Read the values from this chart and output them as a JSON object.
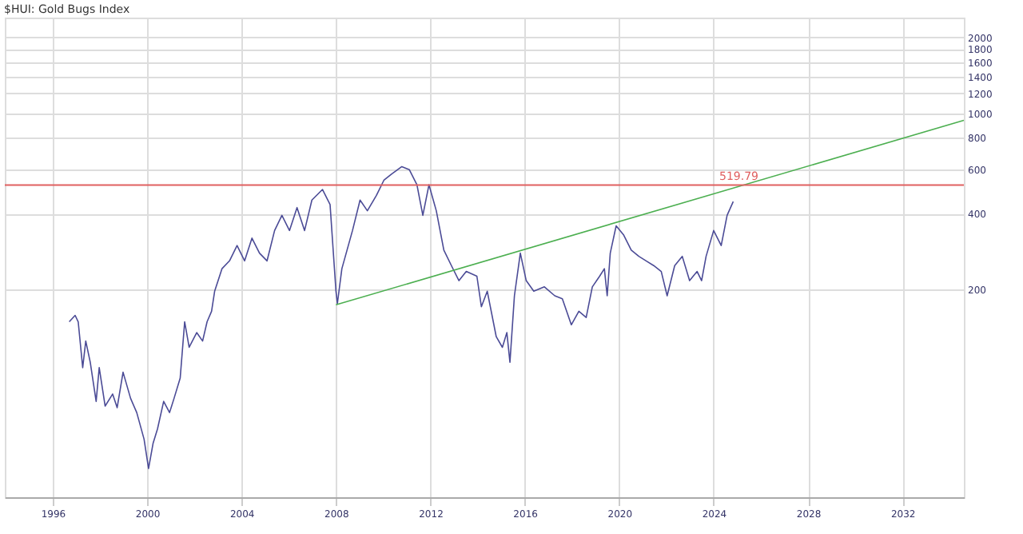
{
  "chart_data": {
    "type": "line",
    "title": "$HUI: Gold Bugs Index",
    "x": [
      1996.7,
      1996.95,
      1997.08,
      1997.27,
      1997.4,
      1997.59,
      1997.84,
      1997.97,
      1998.22,
      1998.54,
      1998.73,
      1998.98,
      1999.3,
      1999.56,
      1999.87,
      2000.06,
      2000.25,
      2000.44,
      2000.7,
      2000.95,
      2001.14,
      2001.4,
      2001.59,
      2001.78,
      2002.1,
      2002.35,
      2002.54,
      2002.73,
      2002.86,
      2003.17,
      2003.49,
      2003.81,
      2004.13,
      2004.44,
      2004.76,
      2005.08,
      2005.4,
      2005.71,
      2006.03,
      2006.35,
      2006.67,
      2006.98,
      2007.43,
      2007.75,
      2008.0,
      2008.06,
      2008.25,
      2008.7,
      2009.02,
      2009.33,
      2009.71,
      2010.03,
      2010.35,
      2010.79,
      2011.11,
      2011.43,
      2011.68,
      2011.94,
      2012.25,
      2012.57,
      2012.89,
      2013.21,
      2013.52,
      2013.97,
      2014.16,
      2014.41,
      2014.79,
      2015.05,
      2015.24,
      2015.37,
      2015.56,
      2015.81,
      2016.06,
      2016.38,
      2016.83,
      2017.27,
      2017.59,
      2017.97,
      2018.29,
      2018.6,
      2018.86,
      2019.17,
      2019.37,
      2019.49,
      2019.62,
      2019.87,
      2020.19,
      2020.51,
      2020.83,
      2021.14,
      2021.46,
      2021.78,
      2022.03,
      2022.35,
      2022.67,
      2022.98,
      2023.3,
      2023.49,
      2023.68,
      2024.0,
      2024.32,
      2024.57,
      2024.83
    ],
    "series": [
      {
        "color": "#4b4b96",
        "values": [
          149,
          158,
          149,
          98,
          125,
          103,
          72,
          98,
          69,
          77,
          68,
          94,
          74,
          65,
          51,
          39,
          49,
          56,
          72,
          65,
          74,
          89,
          149,
          118,
          135,
          125,
          149,
          164,
          197,
          242,
          260,
          299,
          260,
          320,
          279,
          260,
          343,
          394,
          343,
          423,
          343,
          453,
          499,
          435,
          197,
          176,
          242,
          343,
          453,
          411,
          472,
          543,
          574,
          615,
          598,
          521,
          394,
          521,
          411,
          287,
          249,
          217,
          236,
          226,
          171,
          197,
          130,
          118,
          135,
          103,
          189,
          279,
          217,
          197,
          205,
          189,
          184,
          145,
          164,
          155,
          205,
          226,
          242,
          189,
          279,
          358,
          329,
          287,
          271,
          260,
          249,
          236,
          189,
          249,
          271,
          217,
          236,
          217,
          271,
          343,
          299,
          394,
          447
        ]
      },
      {
        "type": "line",
        "color": "#4caf50",
        "x": [
          2008.0,
          2034.6
        ],
        "values": [
          174,
          939
        ]
      }
    ],
    "xlim": [
      1993.97,
      2034.6
    ],
    "ylim": [
      30,
      2400
    ],
    "log": true,
    "xticks": [
      1996,
      2000,
      2004,
      2008,
      2012,
      2016,
      2020,
      2024,
      2028,
      2032
    ],
    "yticks": [
      200,
      400,
      600,
      800,
      1000,
      1200,
      1400,
      1600,
      1800,
      2000
    ],
    "ref_lines": [
      {
        "axis": "y",
        "value": 519.79,
        "label": "519.79",
        "color": "#e06060"
      }
    ],
    "grid": true,
    "marker": "none",
    "line_style": "solid"
  }
}
